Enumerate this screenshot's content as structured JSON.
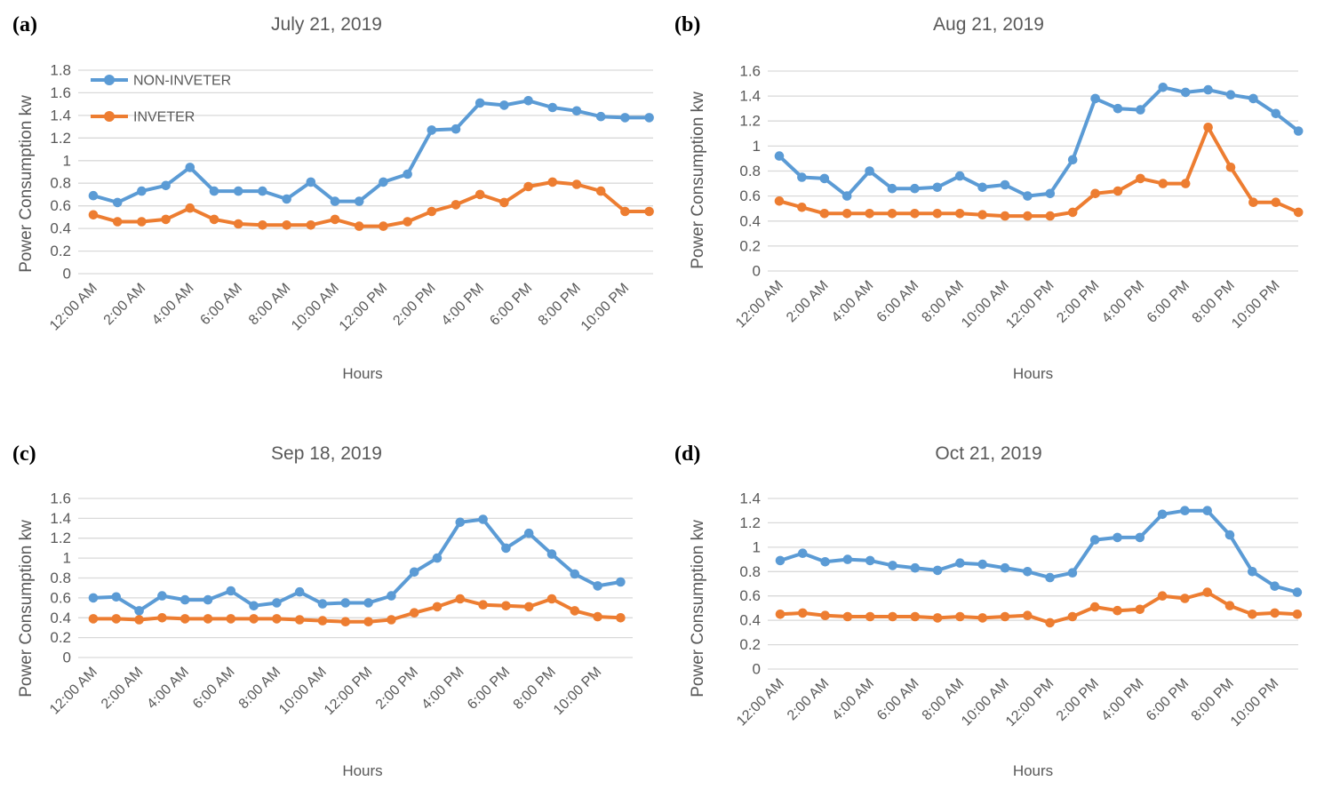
{
  "style": {
    "series_blue": "#5B9BD5",
    "series_orange": "#ED7D31",
    "gridline_color": "#D9D9D9",
    "tick_text_color": "#595959",
    "title_text_color": "#595959",
    "panel_label_color": "#000000",
    "background_color": "#FFFFFF"
  },
  "chart_data": [
    {
      "type": "line",
      "panel_label": "(a)",
      "title": "July 21, 2019",
      "xlabel": "Hours",
      "ylabel": "Power Consumption kw",
      "ylim": [
        0,
        1.8
      ],
      "ytick_step": 0.2,
      "grid": true,
      "legend_position": "top-left-inside",
      "x_tick_labels": [
        "12:00 AM",
        "2:00 AM",
        "4:00 AM",
        "6:00 AM",
        "8:00 AM",
        "10:00 AM",
        "12:00 PM",
        "2:00 PM",
        "4:00 PM",
        "6:00 PM",
        "8:00 PM",
        "10:00 PM"
      ],
      "categories": [
        "12:00 AM",
        "1:00 AM",
        "2:00 AM",
        "3:00 AM",
        "4:00 AM",
        "5:00 AM",
        "6:00 AM",
        "7:00 AM",
        "8:00 AM",
        "9:00 AM",
        "10:00 AM",
        "11:00 AM",
        "12:00 PM",
        "1:00 PM",
        "2:00 PM",
        "3:00 PM",
        "4:00 PM",
        "5:00 PM",
        "6:00 PM",
        "7:00 PM",
        "8:00 PM",
        "9:00 PM",
        "10:00 PM",
        "11:00 PM"
      ],
      "series": [
        {
          "name": "NON-INVETER",
          "color": "#5B9BD5",
          "values": [
            0.69,
            0.63,
            0.73,
            0.78,
            0.94,
            0.73,
            0.73,
            0.73,
            0.66,
            0.81,
            0.64,
            0.64,
            0.81,
            0.88,
            1.27,
            1.28,
            1.51,
            1.49,
            1.53,
            1.47,
            1.44,
            1.39,
            1.38,
            1.38
          ]
        },
        {
          "name": "INVETER",
          "color": "#ED7D31",
          "values": [
            0.52,
            0.46,
            0.46,
            0.48,
            0.58,
            0.48,
            0.44,
            0.43,
            0.43,
            0.43,
            0.48,
            0.42,
            0.42,
            0.46,
            0.55,
            0.61,
            0.7,
            0.63,
            0.77,
            0.81,
            0.79,
            0.73,
            0.55,
            0.55
          ]
        }
      ]
    },
    {
      "type": "line",
      "panel_label": "(b)",
      "title": "Aug 21, 2019",
      "xlabel": "Hours",
      "ylabel": "Power Consumption kw",
      "ylim": [
        0,
        1.6
      ],
      "ytick_step": 0.2,
      "grid": true,
      "legend_position": "none",
      "x_tick_labels": [
        "12:00 AM",
        "2:00 AM",
        "4:00 AM",
        "6:00 AM",
        "8:00 AM",
        "10:00 AM",
        "12:00 PM",
        "2:00 PM",
        "4:00 PM",
        "6:00 PM",
        "8:00 PM",
        "10:00 PM"
      ],
      "categories": [
        "12:00 AM",
        "1:00 AM",
        "2:00 AM",
        "3:00 AM",
        "4:00 AM",
        "5:00 AM",
        "6:00 AM",
        "7:00 AM",
        "8:00 AM",
        "9:00 AM",
        "10:00 AM",
        "11:00 AM",
        "12:00 PM",
        "1:00 PM",
        "2:00 PM",
        "3:00 PM",
        "4:00 PM",
        "5:00 PM",
        "6:00 PM",
        "7:00 PM",
        "8:00 PM",
        "9:00 PM",
        "10:00 PM",
        "11:00 PM"
      ],
      "series": [
        {
          "name": "NON-INVETER",
          "color": "#5B9BD5",
          "values": [
            0.92,
            0.75,
            0.74,
            0.6,
            0.8,
            0.66,
            0.66,
            0.67,
            0.76,
            0.67,
            0.69,
            0.6,
            0.62,
            0.89,
            1.38,
            1.3,
            1.29,
            1.47,
            1.43,
            1.45,
            1.41,
            1.38,
            1.26,
            1.12
          ]
        },
        {
          "name": "INVETER",
          "color": "#ED7D31",
          "values": [
            0.56,
            0.51,
            0.46,
            0.46,
            0.46,
            0.46,
            0.46,
            0.46,
            0.46,
            0.45,
            0.44,
            0.44,
            0.44,
            0.47,
            0.62,
            0.64,
            0.74,
            0.7,
            0.7,
            1.15,
            0.83,
            0.55,
            0.55,
            0.47
          ]
        }
      ]
    },
    {
      "type": "line",
      "panel_label": "(c)",
      "title": "Sep 18, 2019",
      "xlabel": "Hours",
      "ylabel": "Power Consumption kw",
      "ylim": [
        0,
        1.6
      ],
      "ytick_step": 0.2,
      "grid": true,
      "legend_position": "none",
      "x_tick_labels": [
        "12:00 AM",
        "2:00 AM",
        "4:00 AM",
        "6:00 AM",
        "8:00 AM",
        "10:00 AM",
        "12:00 PM",
        "2:00 PM",
        "4:00 PM",
        "6:00 PM",
        "8:00 PM",
        "10:00 PM"
      ],
      "categories": [
        "12:00 AM",
        "1:00 AM",
        "2:00 AM",
        "3:00 AM",
        "4:00 AM",
        "5:00 AM",
        "6:00 AM",
        "7:00 AM",
        "8:00 AM",
        "9:00 AM",
        "10:00 AM",
        "11:00 AM",
        "12:00 PM",
        "1:00 PM",
        "2:00 PM",
        "3:00 PM",
        "4:00 PM",
        "5:00 PM",
        "6:00 PM",
        "7:00 PM",
        "8:00 PM",
        "9:00 PM",
        "10:00 PM",
        "11:00 PM"
      ],
      "series": [
        {
          "name": "NON-INVETER",
          "color": "#5B9BD5",
          "values": [
            0.6,
            0.61,
            0.47,
            0.62,
            0.58,
            0.58,
            0.67,
            0.52,
            0.55,
            0.66,
            0.54,
            0.55,
            0.55,
            0.62,
            0.86,
            1.0,
            1.36,
            1.39,
            1.1,
            1.25,
            1.04,
            0.84,
            0.72,
            0.76
          ]
        },
        {
          "name": "INVETER",
          "color": "#ED7D31",
          "values": [
            0.39,
            0.39,
            0.38,
            0.4,
            0.39,
            0.39,
            0.39,
            0.39,
            0.39,
            0.38,
            0.37,
            0.36,
            0.36,
            0.38,
            0.45,
            0.51,
            0.59,
            0.53,
            0.52,
            0.51,
            0.59,
            0.47,
            0.41,
            0.4
          ]
        }
      ]
    },
    {
      "type": "line",
      "panel_label": "(d)",
      "title": "Oct 21, 2019",
      "xlabel": "Hours",
      "ylabel": "Power Consumption kw",
      "ylim": [
        0,
        1.4
      ],
      "ytick_step": 0.2,
      "grid": true,
      "legend_position": "none",
      "x_tick_labels": [
        "12:00 AM",
        "2:00 AM",
        "4:00 AM",
        "6:00 AM",
        "8:00 AM",
        "10:00 AM",
        "12:00 PM",
        "2:00 PM",
        "4:00 PM",
        "6:00 PM",
        "8:00 PM",
        "10:00 PM"
      ],
      "categories": [
        "12:00 AM",
        "1:00 AM",
        "2:00 AM",
        "3:00 AM",
        "4:00 AM",
        "5:00 AM",
        "6:00 AM",
        "7:00 AM",
        "8:00 AM",
        "9:00 AM",
        "10:00 AM",
        "11:00 AM",
        "12:00 PM",
        "1:00 PM",
        "2:00 PM",
        "3:00 PM",
        "4:00 PM",
        "5:00 PM",
        "6:00 PM",
        "7:00 PM",
        "8:00 PM",
        "9:00 PM",
        "10:00 PM",
        "11:00 PM"
      ],
      "series": [
        {
          "name": "NON-INVETER",
          "color": "#5B9BD5",
          "values": [
            0.89,
            0.95,
            0.88,
            0.9,
            0.89,
            0.85,
            0.83,
            0.81,
            0.87,
            0.86,
            0.83,
            0.8,
            0.75,
            0.79,
            1.06,
            1.08,
            1.08,
            1.27,
            1.3,
            1.3,
            1.1,
            0.8,
            0.68,
            0.63
          ]
        },
        {
          "name": "INVETER",
          "color": "#ED7D31",
          "values": [
            0.45,
            0.46,
            0.44,
            0.43,
            0.43,
            0.43,
            0.43,
            0.42,
            0.43,
            0.42,
            0.43,
            0.44,
            0.38,
            0.43,
            0.51,
            0.48,
            0.49,
            0.6,
            0.58,
            0.63,
            0.52,
            0.45,
            0.46,
            0.45
          ]
        }
      ]
    }
  ]
}
